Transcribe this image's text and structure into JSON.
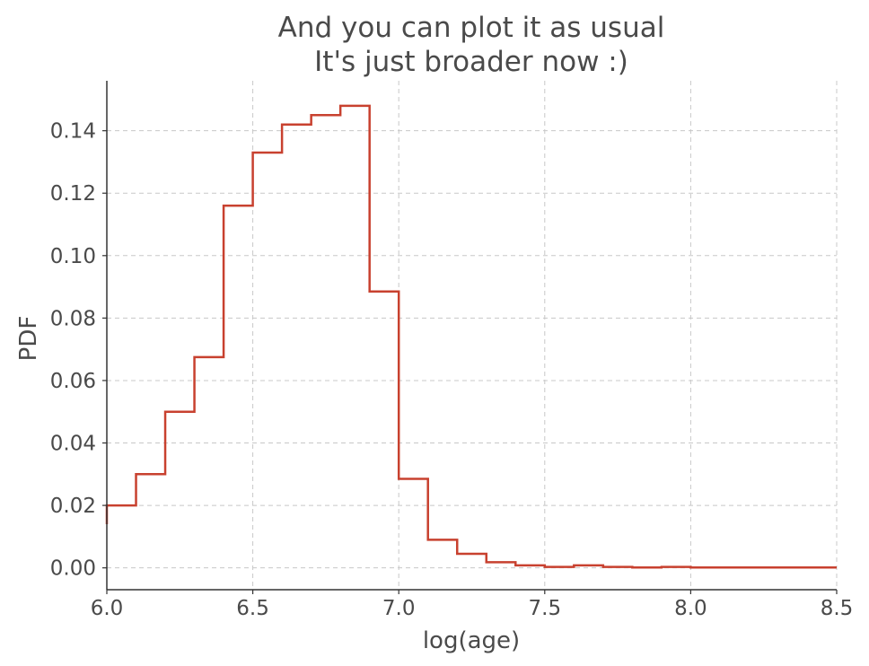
{
  "chart_data": {
    "type": "line",
    "style": "step-histogram",
    "title_lines": [
      "And you can plot it as usual",
      "It's just broader now :)"
    ],
    "xlabel": "log(age)",
    "ylabel": "PDF",
    "xlim": [
      6.0,
      8.5
    ],
    "ylim": [
      -0.007,
      0.156
    ],
    "xticks": [
      6.0,
      6.5,
      7.0,
      7.5,
      8.0,
      8.5
    ],
    "xtick_labels": [
      "6.0",
      "6.5",
      "7.0",
      "7.5",
      "8.0",
      "8.5"
    ],
    "yticks": [
      0.0,
      0.02,
      0.04,
      0.06,
      0.08,
      0.1,
      0.12,
      0.14
    ],
    "ytick_labels": [
      "0.00",
      "0.02",
      "0.04",
      "0.06",
      "0.08",
      "0.10",
      "0.12",
      "0.14"
    ],
    "grid": true,
    "series": [
      {
        "color": "#c8412f",
        "bin_edges": [
          6.0,
          6.1,
          6.2,
          6.3,
          6.4,
          6.5,
          6.6,
          6.7,
          6.8,
          6.9,
          7.0,
          7.1,
          7.2,
          7.3,
          7.4,
          7.5,
          7.6,
          7.7,
          7.8,
          7.9,
          8.0,
          8.1,
          8.2,
          8.3,
          8.4,
          8.5
        ],
        "values": [
          0.02,
          0.03,
          0.05,
          0.0675,
          0.116,
          0.133,
          0.142,
          0.145,
          0.148,
          0.0885,
          0.0285,
          0.009,
          0.0045,
          0.0018,
          0.0008,
          0.0003,
          0.0008,
          0.0003,
          0.0001,
          0.0003,
          0.0001,
          0.0001,
          0.0001,
          0.0001,
          0.0001
        ],
        "start_value": 0.014
      }
    ]
  }
}
